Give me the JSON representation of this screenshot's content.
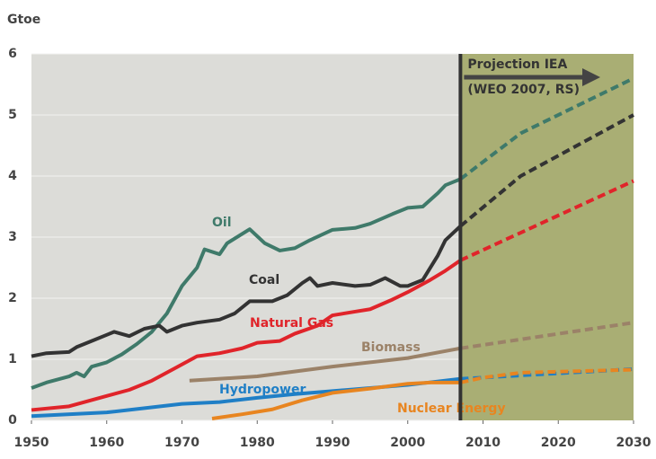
{
  "chart_data": {
    "type": "line",
    "ylabel": "Gtoe",
    "annotation": "Projection IEA",
    "annotation_sub": "(WEO 2007, RS)",
    "xlim": [
      1950,
      2030
    ],
    "xticks": [
      1950,
      1960,
      1970,
      1980,
      1990,
      2000,
      2010,
      2020,
      2030
    ],
    "ylim": [
      0,
      6
    ],
    "yticks": [
      0,
      1,
      2,
      3,
      4,
      5,
      6
    ],
    "grid": true,
    "series": [
      {
        "name": "Oil",
        "color": "#3f7a6a",
        "x": [
          1950,
          1952,
          1955,
          1956,
          1957,
          1958,
          1960,
          1962,
          1964,
          1966,
          1968,
          1970,
          1972,
          1973,
          1975,
          1976,
          1979,
          1981,
          1983,
          1985,
          1987,
          1990,
          1993,
          1995,
          1998,
          2000,
          2002,
          2004,
          2005,
          2007
        ],
        "values": [
          0.53,
          0.62,
          0.72,
          0.78,
          0.72,
          0.88,
          0.95,
          1.08,
          1.25,
          1.45,
          1.75,
          2.2,
          2.5,
          2.8,
          2.72,
          2.9,
          3.13,
          2.9,
          2.78,
          2.82,
          2.95,
          3.12,
          3.15,
          3.22,
          3.38,
          3.48,
          3.5,
          3.72,
          3.85,
          3.95
        ],
        "projection": {
          "x": [
            2007,
            2015,
            2030
          ],
          "values": [
            3.95,
            4.7,
            5.6
          ]
        }
      },
      {
        "name": "Coal",
        "color": "#333333",
        "x": [
          1950,
          1952,
          1955,
          1956,
          1958,
          1960,
          1961,
          1963,
          1965,
          1967,
          1968,
          1970,
          1972,
          1975,
          1977,
          1979,
          1982,
          1984,
          1986,
          1987,
          1988,
          1990,
          1993,
          1995,
          1997,
          1999,
          2000,
          2002,
          2004,
          2005,
          2007
        ],
        "values": [
          1.05,
          1.1,
          1.12,
          1.2,
          1.3,
          1.4,
          1.45,
          1.38,
          1.5,
          1.55,
          1.45,
          1.55,
          1.6,
          1.65,
          1.75,
          1.95,
          1.95,
          2.05,
          2.25,
          2.33,
          2.2,
          2.25,
          2.2,
          2.22,
          2.33,
          2.2,
          2.2,
          2.3,
          2.7,
          2.95,
          3.18
        ],
        "projection": {
          "x": [
            2007,
            2015,
            2030
          ],
          "values": [
            3.18,
            4.0,
            5.0
          ]
        }
      },
      {
        "name": "Natural Gas",
        "color": "#e0242a",
        "x": [
          1950,
          1955,
          1960,
          1963,
          1966,
          1969,
          1972,
          1975,
          1978,
          1980,
          1983,
          1985,
          1988,
          1990,
          1993,
          1995,
          1998,
          2000,
          2003,
          2005,
          2007
        ],
        "values": [
          0.17,
          0.23,
          0.4,
          0.5,
          0.65,
          0.85,
          1.05,
          1.1,
          1.18,
          1.27,
          1.3,
          1.42,
          1.55,
          1.72,
          1.78,
          1.82,
          1.98,
          2.1,
          2.3,
          2.45,
          2.62
        ],
        "projection": {
          "x": [
            2007,
            2030
          ],
          "values": [
            2.62,
            3.92
          ]
        }
      },
      {
        "name": "Biomass",
        "color": "#9b8268",
        "x": [
          1971,
          1980,
          1990,
          2000,
          2007
        ],
        "values": [
          0.65,
          0.72,
          0.88,
          1.02,
          1.18
        ],
        "projection": {
          "x": [
            2007,
            2030
          ],
          "values": [
            1.18,
            1.6
          ]
        }
      },
      {
        "name": "Hydropower",
        "color": "#1f7fc6",
        "x": [
          1950,
          1960,
          1970,
          1975,
          1980,
          1985,
          1990,
          1995,
          2000,
          2007
        ],
        "values": [
          0.07,
          0.13,
          0.27,
          0.3,
          0.37,
          0.43,
          0.48,
          0.53,
          0.58,
          0.68
        ],
        "projection": {
          "x": [
            2007,
            2030
          ],
          "values": [
            0.68,
            0.84
          ]
        }
      },
      {
        "name": "Nuclear Energy",
        "color": "#e88520",
        "x": [
          1974,
          1978,
          1982,
          1986,
          1990,
          1995,
          2000,
          2003,
          2007
        ],
        "values": [
          0.03,
          0.1,
          0.18,
          0.33,
          0.45,
          0.52,
          0.6,
          0.62,
          0.62
        ],
        "projection": {
          "x": [
            2007,
            2010,
            2015,
            2030
          ],
          "values": [
            0.62,
            0.7,
            0.78,
            0.83
          ]
        }
      }
    ]
  }
}
